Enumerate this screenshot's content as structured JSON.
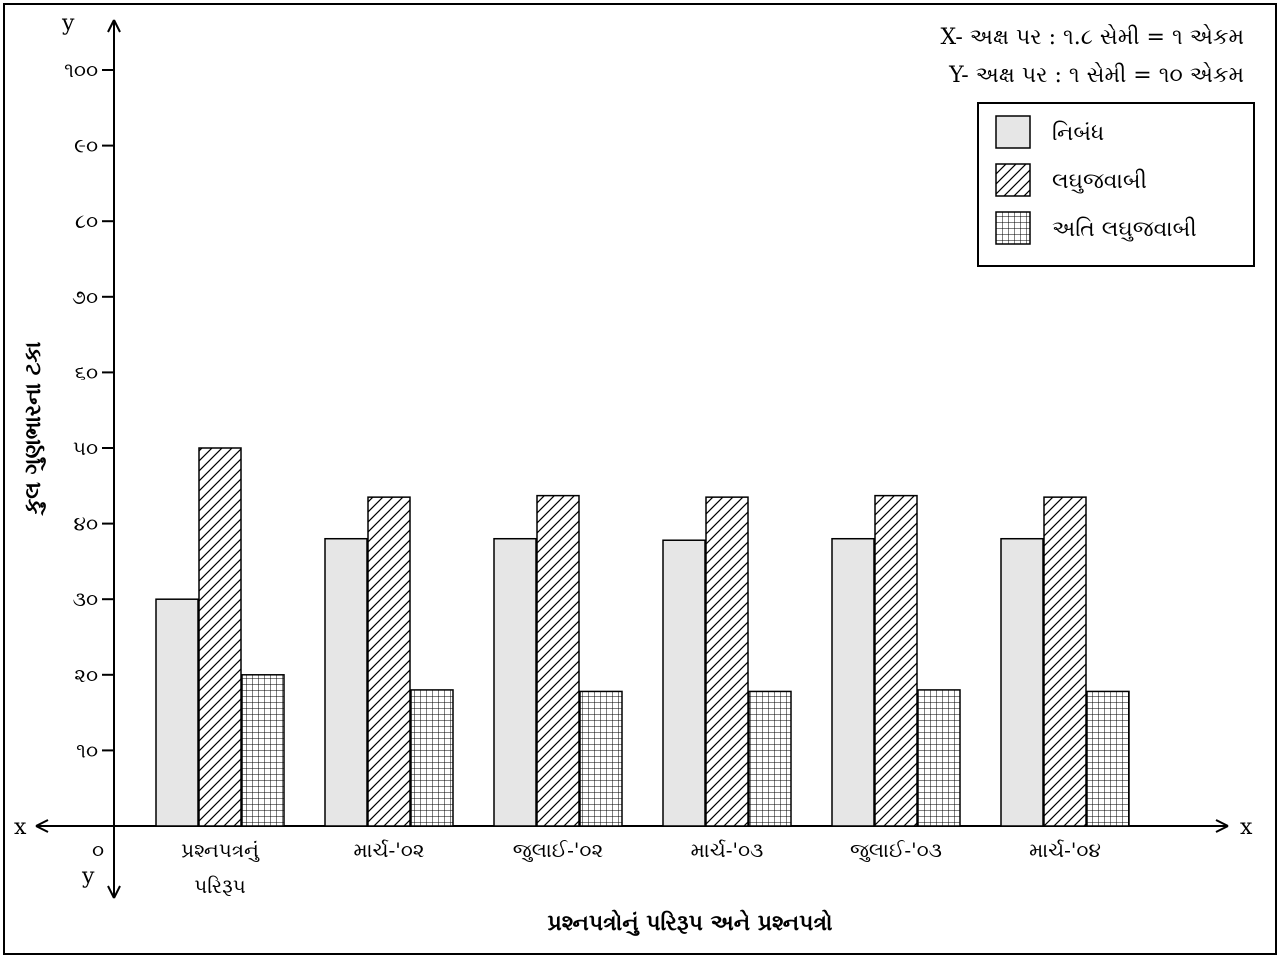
{
  "chart_data": {
    "type": "bar",
    "categories": [
      "પ્રશ્નપત્રનું પરિરૂપ",
      "માર્ચ-'૦૨",
      "જુલાઈ-'૦૨",
      "માર્ચ-'૦૩",
      "જુલાઈ-'૦૩",
      "માર્ચ-'૦૪"
    ],
    "category_lines": [
      [
        "પ્રશ્નપત્રનું",
        "પરિરૂપ"
      ],
      [
        "માર્ચ-'૦૨"
      ],
      [
        "જુલાઈ-'૦૨"
      ],
      [
        "માર્ચ-'૦૩"
      ],
      [
        "જુલાઈ-'૦૩"
      ],
      [
        "માર્ચ-'૦૪"
      ]
    ],
    "series": [
      {
        "name": "નિબંધ",
        "values": [
          30,
          38,
          38,
          37.8,
          38,
          38
        ],
        "fill": "#e6e6e6",
        "pattern": "solid"
      },
      {
        "name": "લઘુજવાબી",
        "values": [
          50,
          43.5,
          43.7,
          43.5,
          43.7,
          43.5
        ],
        "fill": "#ffffff",
        "pattern": "diagonal-hatch"
      },
      {
        "name": "અતિ લઘુજવાબી",
        "values": [
          20,
          18,
          17.8,
          17.8,
          18,
          17.8
        ],
        "fill": "#ffffff",
        "pattern": "grid"
      }
    ],
    "yticks": [
      {
        "value": 10,
        "label": "૧૦"
      },
      {
        "value": 20,
        "label": "૨૦"
      },
      {
        "value": 30,
        "label": "૩૦"
      },
      {
        "value": 40,
        "label": "૪૦"
      },
      {
        "value": 50,
        "label": "૫૦"
      },
      {
        "value": 60,
        "label": "૬૦"
      },
      {
        "value": 70,
        "label": "૭૦"
      },
      {
        "value": 80,
        "label": "૮૦"
      },
      {
        "value": 90,
        "label": "૯૦"
      },
      {
        "value": 100,
        "label": "૧૦૦"
      }
    ],
    "ylim": [
      0,
      100
    ],
    "origin_label": "૦",
    "xlabel": "પ્રશ્નપત્રોનું પરિરૂપ અને પ્રશ્નપત્રો",
    "ylabel": "કુલ ગુણભારના ટકા",
    "axis_letters": {
      "x_left": "x",
      "x_right": "x",
      "y_top": "y",
      "y_bottom": "y"
    },
    "scale_notes": [
      "X- અક્ષ પર : ૧.૮ સેમી = ૧ એકમ",
      "Y- અક્ષ પર : ૧ સેમી = ૧૦ એકમ"
    ],
    "legend_position": "top-right",
    "grid": false
  }
}
